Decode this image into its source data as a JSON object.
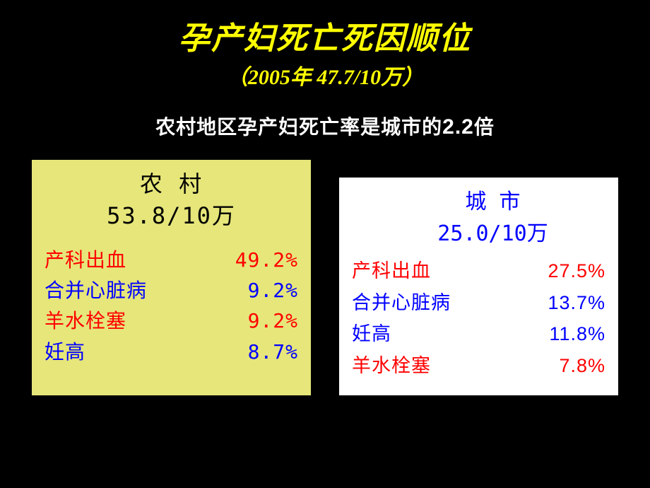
{
  "colors": {
    "background": "#000000",
    "title": "#ffff00",
    "white": "#ffffff",
    "box_left_bg": "#e6e67a",
    "box_right_bg": "#ffffff",
    "black": "#000000",
    "red": "#ff0000",
    "blue": "#0000ff"
  },
  "title": "孕产妇死亡死因顺位",
  "subtitle": "（2005年 47.7/10万）",
  "description_prefix": "农村地区孕产妇死亡率是城市的",
  "description_multiplier": "2.2",
  "description_suffix": "倍",
  "left_box": {
    "header_line1": "农 村",
    "header_line2": "53.8/10万",
    "rows": [
      {
        "label": "产科出血",
        "value": "49.2%",
        "label_color": "#ff0000",
        "value_color": "#ff0000"
      },
      {
        "label": "合并心脏病",
        "value": "9.2%",
        "label_color": "#0000ff",
        "value_color": "#0000ff"
      },
      {
        "label": "羊水栓塞",
        "value": "9.2%",
        "label_color": "#ff0000",
        "value_color": "#ff0000"
      },
      {
        "label": "妊高",
        "value": "8.7%",
        "label_color": "#0000ff",
        "value_color": "#0000ff"
      }
    ]
  },
  "right_box": {
    "header_line1": "城  市",
    "header_line2": "25.0/10万",
    "rows": [
      {
        "label": "产科出血",
        "value": "27.5%",
        "label_color": "#ff0000",
        "value_color": "#ff0000"
      },
      {
        "label": "合并心脏病",
        "value": "13.7%",
        "label_color": "#0000ff",
        "value_color": "#0000ff"
      },
      {
        "label": "妊高",
        "value": "11.8%",
        "label_color": "#0000ff",
        "value_color": "#0000ff"
      },
      {
        "label": "羊水栓塞",
        "value": "7.8%",
        "label_color": "#ff0000",
        "value_color": "#ff0000"
      }
    ]
  }
}
